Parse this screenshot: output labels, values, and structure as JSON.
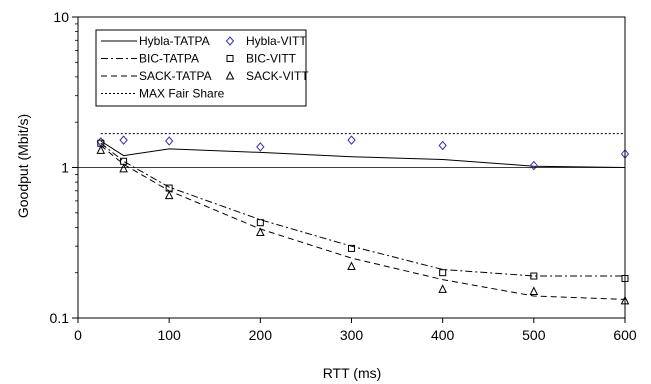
{
  "chart_data": {
    "type": "line",
    "title": "",
    "xlabel": "RTT (ms)",
    "ylabel": "Goodput (Mbit/s)",
    "xlim": [
      0,
      600
    ],
    "ylim": [
      0.1,
      10
    ],
    "yscale": "log",
    "grid": "major horizontal line at y=1 only",
    "legend_position": "top-left",
    "x_ticks": [
      0,
      100,
      200,
      300,
      400,
      500,
      600
    ],
    "x_tick_labels": [
      "0",
      "100",
      "200",
      "300",
      "400",
      "500",
      "600"
    ],
    "y_ticks": [
      0.1,
      1,
      10
    ],
    "y_tick_labels": [
      "0.1",
      "1",
      "10"
    ],
    "series": [
      {
        "name": "Hybla-TATPA",
        "kind": "line",
        "dash": "solid",
        "x": [
          25,
          50,
          100,
          200,
          300,
          400,
          500,
          600
        ],
        "y": [
          1.5,
          1.2,
          1.33,
          1.26,
          1.18,
          1.13,
          1.02,
          1.0
        ]
      },
      {
        "name": "BIC-TATPA",
        "kind": "line",
        "dash": "dashdot",
        "x": [
          25,
          50,
          100,
          200,
          300,
          400,
          500,
          600
        ],
        "y": [
          1.45,
          1.1,
          0.74,
          0.45,
          0.3,
          0.21,
          0.19,
          0.19
        ]
      },
      {
        "name": "SACK-TATPA",
        "kind": "line",
        "dash": "dashed",
        "x": [
          25,
          50,
          100,
          200,
          300,
          400,
          500,
          600
        ],
        "y": [
          1.4,
          1.05,
          0.7,
          0.39,
          0.25,
          0.18,
          0.14,
          0.133
        ]
      },
      {
        "name": "MAX Fair Share",
        "kind": "line",
        "dash": "dotted",
        "x": [
          25,
          600
        ],
        "y": [
          1.68,
          1.68
        ]
      },
      {
        "name": "Hybla-VITT",
        "kind": "marker",
        "marker": "diamond",
        "x": [
          25,
          50,
          100,
          200,
          300,
          400,
          500,
          600
        ],
        "y": [
          1.48,
          1.52,
          1.5,
          1.37,
          1.52,
          1.4,
          1.03,
          1.23
        ]
      },
      {
        "name": "BIC-VITT",
        "kind": "marker",
        "marker": "square",
        "x": [
          25,
          50,
          100,
          200,
          300,
          400,
          500,
          600
        ],
        "y": [
          1.45,
          1.1,
          0.73,
          0.43,
          0.29,
          0.2,
          0.19,
          0.183
        ]
      },
      {
        "name": "SACK-VITT",
        "kind": "marker",
        "marker": "triangle",
        "x": [
          25,
          50,
          100,
          200,
          300,
          400,
          500,
          600
        ],
        "y": [
          1.3,
          0.98,
          0.65,
          0.37,
          0.22,
          0.155,
          0.15,
          0.13
        ]
      }
    ],
    "legend_order": [
      "Hybla-TATPA",
      "Hybla-VITT",
      "BIC-TATPA",
      "BIC-VITT",
      "SACK-TATPA",
      "SACK-VITT",
      "MAX Fair Share"
    ],
    "colors": {
      "line": "#000000",
      "hybla_vitt_marker": "#3333aa",
      "marker_edge": "#000000"
    }
  }
}
